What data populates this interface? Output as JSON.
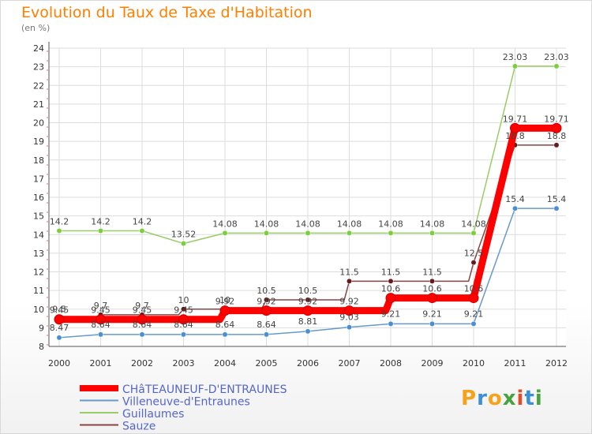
{
  "header": {
    "title": "Evolution du Taux de Taxe d'Habitation",
    "unit": "(en %)"
  },
  "logo": {
    "text": "Proxiti",
    "colors": [
      "#f7a21b",
      "#3b8fd4",
      "#f7a21b",
      "#46a33d",
      "#e84a26",
      "#3b8fd4",
      "#46a33d"
    ]
  },
  "chart_data": {
    "type": "line",
    "x": [
      "2000",
      "2001",
      "2002",
      "2003",
      "2004",
      "2005",
      "2006",
      "2007",
      "2008",
      "2009",
      "2010",
      "2011",
      "2012"
    ],
    "ylim": [
      8,
      24
    ],
    "yticks": [
      8,
      9,
      10,
      11,
      12,
      13,
      14,
      15,
      16,
      17,
      18,
      19,
      20,
      21,
      22,
      23,
      24
    ],
    "grid": true,
    "legend_position": "bottom-left",
    "series": [
      {
        "name": "CHâTEAUNEUF-D'ENTRAUNES",
        "color": "#ff0000",
        "style": "step",
        "values": [
          9.45,
          9.45,
          9.45,
          9.45,
          9.92,
          9.92,
          9.92,
          9.92,
          10.6,
          10.6,
          10.6,
          19.71,
          19.71
        ],
        "labels": [
          "9.45",
          "9.45",
          "9.45",
          "9.45",
          "9.92",
          "9.92",
          "9.92",
          "9.92",
          "10.6",
          "10.6",
          "10.6",
          "19.71",
          "19.71"
        ]
      },
      {
        "name": "Villeneuve-d'Entraunes",
        "color": "#6699cc",
        "style": "line",
        "values": [
          8.47,
          8.64,
          8.64,
          8.64,
          8.64,
          8.64,
          8.81,
          9.03,
          9.21,
          9.21,
          9.21,
          15.4,
          15.4
        ],
        "labels": [
          "8.47",
          "8.64",
          "8.64",
          "8.64",
          "8.64",
          "8.64",
          "8.81",
          "9.03",
          "9.21",
          "9.21",
          "9.21",
          "15.4",
          "15.4"
        ]
      },
      {
        "name": "Guillaumes",
        "color": "#99cc66",
        "style": "line",
        "values": [
          14.2,
          14.2,
          14.2,
          13.52,
          14.08,
          14.08,
          14.08,
          14.08,
          14.08,
          14.08,
          14.08,
          23.03,
          23.03
        ],
        "labels": [
          "14.2",
          "14.2",
          "14.2",
          "13.52",
          "14.08",
          "14.08",
          "14.08",
          "14.08",
          "14.08",
          "14.08",
          "14.08",
          "23.03",
          "23.03"
        ]
      },
      {
        "name": "Sauze",
        "color": "#884444",
        "style": "step",
        "values": [
          9.5,
          9.7,
          9.7,
          10,
          10,
          10.5,
          10.5,
          11.5,
          11.5,
          11.5,
          12.5,
          18.8,
          18.8
        ],
        "labels": [
          "9.5",
          "9.7",
          "9.7",
          "10",
          "10",
          "10.5",
          "10.5",
          "11.5",
          "11.5",
          "11.5",
          "12.5",
          "18.8",
          "18.8"
        ]
      }
    ]
  }
}
